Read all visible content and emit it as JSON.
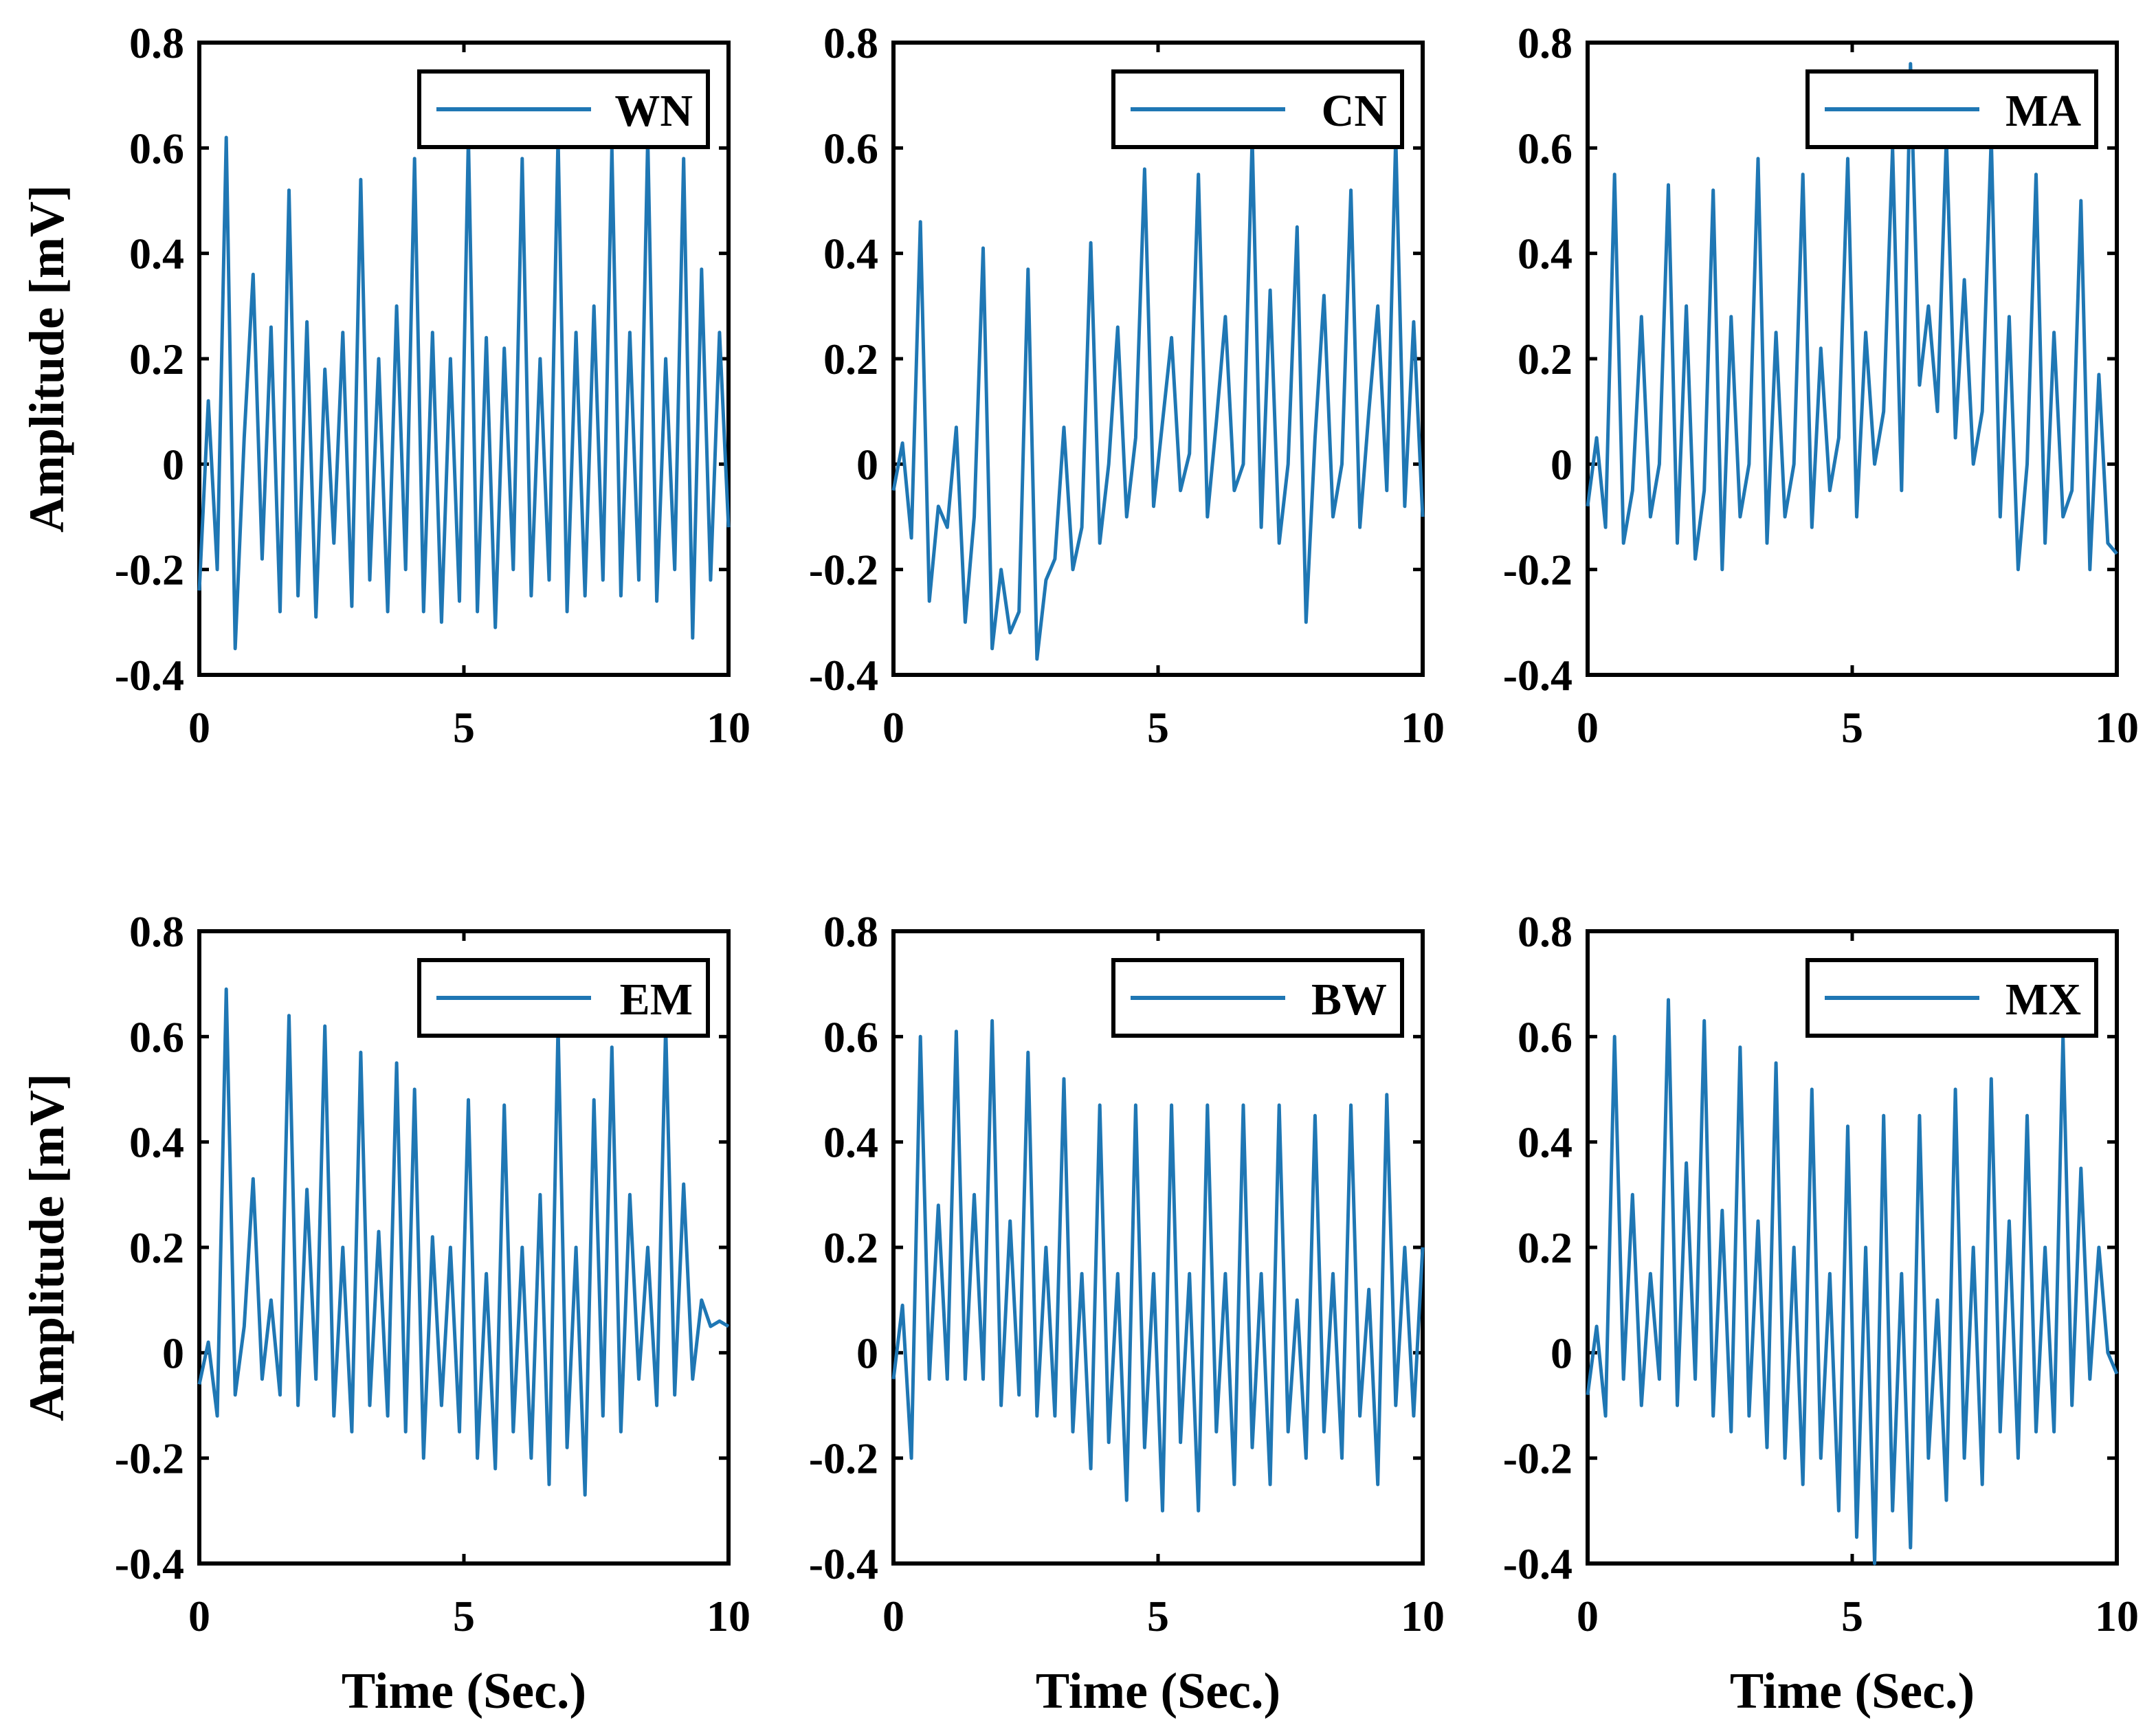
{
  "figure": {
    "layout": "2 rows x 3 columns",
    "line_color": "#1f77b4",
    "shared_ylabel": "Amplitude [mV]",
    "shared_xlabel": "Time (Sec.)"
  },
  "chart_data": [
    {
      "type": "line",
      "series": [
        {
          "name": "WN",
          "values": [
            -0.24,
            0.12,
            -0.2,
            0.62,
            -0.35,
            0.05,
            0.36,
            -0.18,
            0.26,
            -0.28,
            0.52,
            -0.25,
            0.27,
            -0.29,
            0.18,
            -0.15,
            0.25,
            -0.27,
            0.54,
            -0.22,
            0.2,
            -0.28,
            0.3,
            -0.2,
            0.58,
            -0.28,
            0.25,
            -0.3,
            0.2,
            -0.26,
            0.62,
            -0.28,
            0.24,
            -0.31,
            0.22,
            -0.2,
            0.58,
            -0.25,
            0.2,
            -0.22,
            0.62,
            -0.28,
            0.25,
            -0.25,
            0.3,
            -0.22,
            0.6,
            -0.25,
            0.25,
            -0.22,
            0.62,
            -0.26,
            0.2,
            -0.2,
            0.58,
            -0.33,
            0.37,
            -0.22,
            0.25,
            -0.12
          ]
        }
      ],
      "x_range": [
        0,
        10
      ],
      "legend": "WN",
      "ylim": [
        -0.4,
        0.8
      ],
      "xlim": [
        0,
        10
      ],
      "xticks": [
        "0",
        "5",
        "10"
      ],
      "yticks": [
        "-0.4",
        "-0.2",
        "0",
        "0.2",
        "0.4",
        "0.6",
        "0.8"
      ],
      "legend_position": "top-right"
    },
    {
      "type": "line",
      "series": [
        {
          "name": "CN",
          "values": [
            -0.05,
            0.04,
            -0.14,
            0.46,
            -0.26,
            -0.08,
            -0.12,
            0.07,
            -0.3,
            -0.1,
            0.41,
            -0.35,
            -0.2,
            -0.32,
            -0.28,
            0.37,
            -0.37,
            -0.22,
            -0.18,
            0.07,
            -0.2,
            -0.12,
            0.42,
            -0.15,
            0.0,
            0.26,
            -0.1,
            0.05,
            0.56,
            -0.08,
            0.08,
            0.24,
            -0.05,
            0.02,
            0.55,
            -0.1,
            0.08,
            0.28,
            -0.05,
            0.0,
            0.62,
            -0.12,
            0.33,
            -0.15,
            0.0,
            0.45,
            -0.3,
            0.05,
            0.32,
            -0.1,
            0.0,
            0.52,
            -0.12,
            0.1,
            0.3,
            -0.05,
            0.62,
            -0.08,
            0.27,
            -0.1
          ]
        }
      ],
      "x_range": [
        0,
        10
      ],
      "legend": "CN",
      "ylim": [
        -0.4,
        0.8
      ],
      "xlim": [
        0,
        10
      ],
      "xticks": [
        "0",
        "5",
        "10"
      ],
      "yticks": [
        "-0.4",
        "-0.2",
        "0",
        "0.2",
        "0.4",
        "0.6",
        "0.8"
      ],
      "legend_position": "top-right"
    },
    {
      "type": "line",
      "series": [
        {
          "name": "MA",
          "values": [
            -0.08,
            0.05,
            -0.12,
            0.55,
            -0.15,
            -0.05,
            0.28,
            -0.1,
            0.0,
            0.53,
            -0.15,
            0.3,
            -0.18,
            -0.05,
            0.52,
            -0.2,
            0.28,
            -0.1,
            0.0,
            0.58,
            -0.15,
            0.25,
            -0.1,
            0.0,
            0.55,
            -0.12,
            0.22,
            -0.05,
            0.05,
            0.58,
            -0.1,
            0.25,
            0.0,
            0.1,
            0.6,
            -0.05,
            0.76,
            0.15,
            0.3,
            0.1,
            0.62,
            0.05,
            0.35,
            0.0,
            0.1,
            0.62,
            -0.1,
            0.28,
            -0.2,
            0.0,
            0.55,
            -0.15,
            0.25,
            -0.1,
            -0.05,
            0.5,
            -0.2,
            0.17,
            -0.15,
            -0.17
          ]
        }
      ],
      "x_range": [
        0,
        10
      ],
      "legend": "MA",
      "ylim": [
        -0.4,
        0.8
      ],
      "xlim": [
        0,
        10
      ],
      "xticks": [
        "0",
        "5",
        "10"
      ],
      "yticks": [
        "-0.4",
        "-0.2",
        "0",
        "0.2",
        "0.4",
        "0.6",
        "0.8"
      ],
      "legend_position": "top-right"
    },
    {
      "type": "line",
      "series": [
        {
          "name": "EM",
          "values": [
            -0.06,
            0.02,
            -0.12,
            0.69,
            -0.08,
            0.05,
            0.33,
            -0.05,
            0.1,
            -0.08,
            0.64,
            -0.1,
            0.31,
            -0.05,
            0.62,
            -0.12,
            0.2,
            -0.15,
            0.57,
            -0.1,
            0.23,
            -0.12,
            0.55,
            -0.15,
            0.5,
            -0.2,
            0.22,
            -0.1,
            0.2,
            -0.15,
            0.48,
            -0.2,
            0.15,
            -0.22,
            0.47,
            -0.15,
            0.2,
            -0.2,
            0.3,
            -0.25,
            0.62,
            -0.18,
            0.2,
            -0.27,
            0.48,
            -0.12,
            0.58,
            -0.15,
            0.3,
            -0.05,
            0.2,
            -0.1,
            0.62,
            -0.08,
            0.32,
            -0.05,
            0.1,
            0.05,
            0.06,
            0.05
          ]
        }
      ],
      "x_range": [
        0,
        10
      ],
      "legend": "EM",
      "ylim": [
        -0.4,
        0.8
      ],
      "xlim": [
        0,
        10
      ],
      "xticks": [
        "0",
        "5",
        "10"
      ],
      "yticks": [
        "-0.4",
        "-0.2",
        "0",
        "0.2",
        "0.4",
        "0.6",
        "0.8"
      ],
      "legend_position": "top-right"
    },
    {
      "type": "line",
      "series": [
        {
          "name": "BW",
          "values": [
            -0.05,
            0.09,
            -0.2,
            0.6,
            -0.05,
            0.28,
            -0.05,
            0.61,
            -0.05,
            0.3,
            -0.05,
            0.63,
            -0.1,
            0.25,
            -0.08,
            0.57,
            -0.12,
            0.2,
            -0.12,
            0.52,
            -0.15,
            0.15,
            -0.22,
            0.47,
            -0.17,
            0.15,
            -0.28,
            0.47,
            -0.18,
            0.15,
            -0.3,
            0.47,
            -0.17,
            0.15,
            -0.3,
            0.47,
            -0.15,
            0.15,
            -0.25,
            0.47,
            -0.18,
            0.15,
            -0.25,
            0.47,
            -0.15,
            0.1,
            -0.2,
            0.45,
            -0.15,
            0.15,
            -0.2,
            0.47,
            -0.12,
            0.12,
            -0.25,
            0.49,
            -0.1,
            0.2,
            -0.12,
            0.2
          ]
        }
      ],
      "x_range": [
        0,
        10
      ],
      "legend": "BW",
      "ylim": [
        -0.4,
        0.8
      ],
      "xlim": [
        0,
        10
      ],
      "xticks": [
        "0",
        "5",
        "10"
      ],
      "yticks": [
        "-0.4",
        "-0.2",
        "0",
        "0.2",
        "0.4",
        "0.6",
        "0.8"
      ],
      "legend_position": "top-right"
    },
    {
      "type": "line",
      "series": [
        {
          "name": "MX",
          "values": [
            -0.08,
            0.05,
            -0.12,
            0.6,
            -0.05,
            0.3,
            -0.1,
            0.15,
            -0.05,
            0.67,
            -0.1,
            0.36,
            -0.05,
            0.63,
            -0.12,
            0.27,
            -0.15,
            0.58,
            -0.12,
            0.25,
            -0.18,
            0.55,
            -0.2,
            0.2,
            -0.25,
            0.5,
            -0.2,
            0.15,
            -0.3,
            0.43,
            -0.35,
            0.2,
            -0.4,
            0.45,
            -0.3,
            0.15,
            -0.37,
            0.45,
            -0.2,
            0.1,
            -0.28,
            0.5,
            -0.2,
            0.2,
            -0.25,
            0.52,
            -0.15,
            0.25,
            -0.2,
            0.45,
            -0.15,
            0.2,
            -0.15,
            0.6,
            -0.1,
            0.35,
            -0.05,
            0.2,
            0.0,
            -0.04
          ]
        }
      ],
      "x_range": [
        0,
        10
      ],
      "legend": "MX",
      "ylim": [
        -0.4,
        0.8
      ],
      "xlim": [
        0,
        10
      ],
      "xticks": [
        "0",
        "5",
        "10"
      ],
      "yticks": [
        "-0.4",
        "-0.2",
        "0",
        "0.2",
        "0.4",
        "0.6",
        "0.8"
      ],
      "legend_position": "top-right"
    }
  ]
}
